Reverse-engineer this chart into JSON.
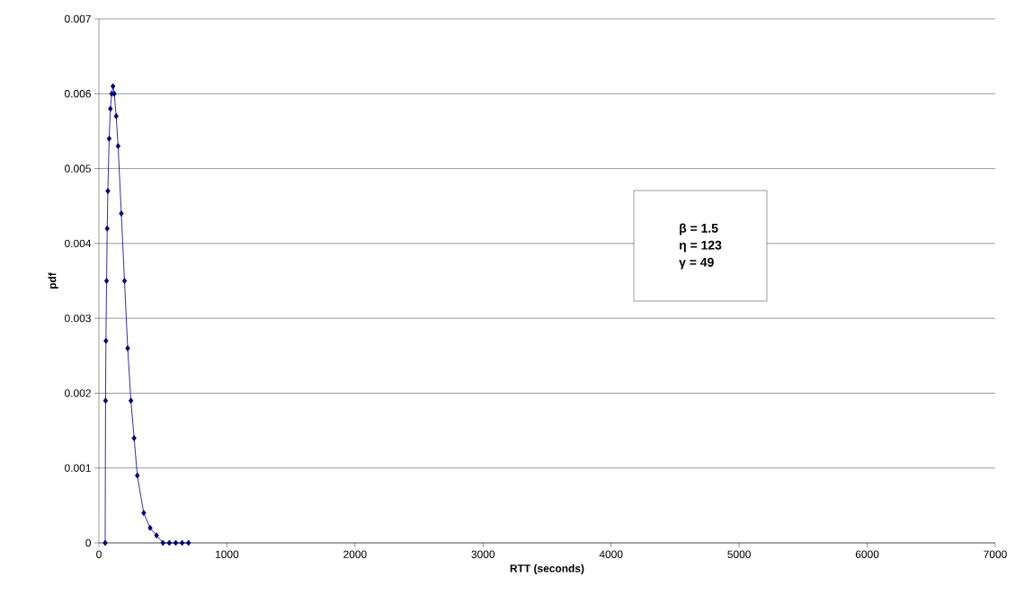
{
  "chart_data": {
    "type": "line",
    "xlabel": "RTT (seconds)",
    "ylabel": "pdf",
    "x": [
      49,
      52,
      55,
      60,
      65,
      70,
      80,
      90,
      100,
      110,
      120,
      135,
      150,
      175,
      200,
      225,
      250,
      275,
      300,
      350,
      400,
      450,
      500,
      550,
      600,
      650,
      700
    ],
    "series": [
      {
        "color": "#000080",
        "values": [
          0,
          0.0019,
          0.0027,
          0.0035,
          0.0042,
          0.0047,
          0.0054,
          0.0058,
          0.006,
          0.0061,
          0.006,
          0.0057,
          0.0053,
          0.0044,
          0.0035,
          0.0026,
          0.0019,
          0.0014,
          0.0009,
          0.0004,
          0.0002,
          0.0001,
          0,
          0,
          0,
          0,
          0
        ]
      }
    ],
    "xlim": [
      0,
      7000
    ],
    "xticks": [
      0,
      1000,
      2000,
      3000,
      4000,
      5000,
      6000,
      7000
    ],
    "ylim": [
      0,
      0.007
    ],
    "yticks": [
      0,
      0.001,
      0.002,
      0.003,
      0.004,
      0.005,
      0.006,
      0.007
    ],
    "grid": "y",
    "marker": "diamond",
    "line_style": "solid",
    "annotations": [
      "β = 1.5",
      "η = 123",
      "γ = 49"
    ]
  }
}
